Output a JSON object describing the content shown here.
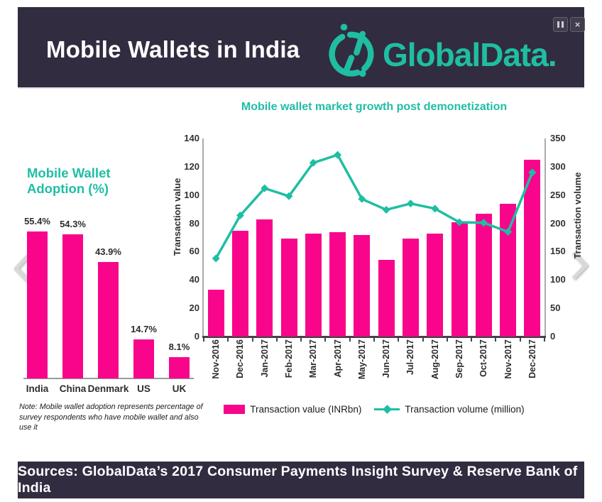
{
  "header": {
    "title": "Mobile Wallets in India",
    "brand": "GlobalData."
  },
  "window_controls": {
    "close_glyph": "×"
  },
  "colors": {
    "pink": "#F8058C",
    "teal": "#1FBEA3",
    "dark_purple": "#322C40"
  },
  "chart_data": [
    {
      "type": "bar",
      "title": "Mobile Wallet Adoption (%)",
      "categories": [
        "India",
        "China",
        "Denmark",
        "US",
        "UK"
      ],
      "values": [
        55.4,
        54.3,
        43.9,
        14.7,
        8.1
      ],
      "data_labels": [
        "55.4%",
        "54.3%",
        "43.9%",
        "14.7%",
        "8.1%"
      ],
      "ylim": [
        0,
        60
      ],
      "grid": false,
      "bar_color": "#F8058C"
    },
    {
      "type": "bar+line",
      "title": "Mobile wallet market growth post demonetization",
      "categories": [
        "Nov-2016",
        "Dec-2016",
        "Jan-2017",
        "Feb-2017",
        "Mar-2017",
        "Apr-2017",
        "May-2017",
        "Jun-2017",
        "Jul-2017",
        "Aug-2017",
        "Sep-2017",
        "Oct-2017",
        "Nov-2017",
        "Dec-2017"
      ],
      "series": [
        {
          "name": "Transaction value (INRbn)",
          "type": "bar",
          "axis": "left",
          "values": [
            33,
            75,
            83,
            69,
            73,
            74,
            72,
            54,
            69,
            73,
            81,
            87,
            94,
            125
          ]
        },
        {
          "name": "Transaction volume (million)",
          "type": "line",
          "axis": "right",
          "values": [
            138,
            214,
            262,
            248,
            307,
            321,
            243,
            224,
            235,
            226,
            202,
            201,
            185,
            290
          ]
        }
      ],
      "left_axis": {
        "label": "Transaction value",
        "min": 0,
        "max": 140,
        "step": 20
      },
      "right_axis": {
        "label": "Transaction volume",
        "min": 0,
        "max": 350,
        "step": 50
      },
      "grid": false,
      "legend_position": "bottom"
    }
  ],
  "note": "Note: Mobile wallet adoption represents percentage of survey respondents who have mobile wallet and also use it",
  "footer": "Sources: GlobalData’s 2017 Consumer Payments Insight Survey & Reserve Bank of India"
}
